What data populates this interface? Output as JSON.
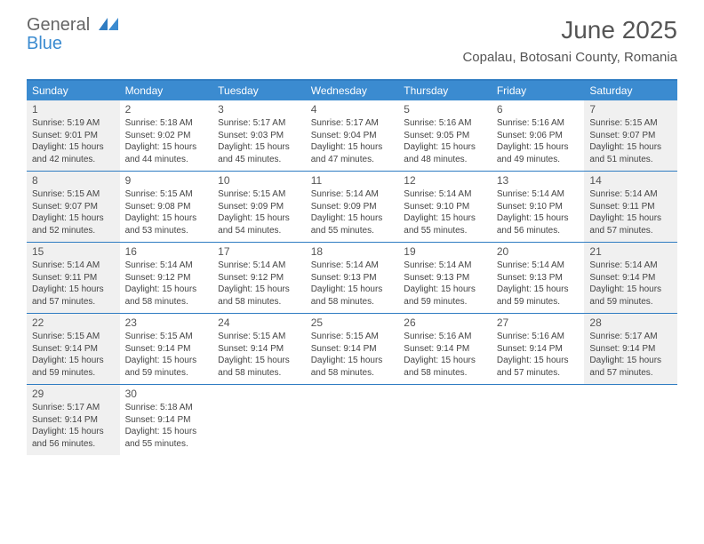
{
  "logo": {
    "line1": "General",
    "line2": "Blue"
  },
  "title": "June 2025",
  "location": "Copalau, Botosani County, Romania",
  "colors": {
    "accent": "#3b8bd0",
    "rule": "#2f7cc2",
    "shade": "#f0f0f0"
  },
  "dow": [
    "Sunday",
    "Monday",
    "Tuesday",
    "Wednesday",
    "Thursday",
    "Friday",
    "Saturday"
  ],
  "days": [
    {
      "n": "1",
      "shaded": true,
      "sunrise": "Sunrise: 5:19 AM",
      "sunset": "Sunset: 9:01 PM",
      "day1": "Daylight: 15 hours",
      "day2": "and 42 minutes."
    },
    {
      "n": "2",
      "shaded": false,
      "sunrise": "Sunrise: 5:18 AM",
      "sunset": "Sunset: 9:02 PM",
      "day1": "Daylight: 15 hours",
      "day2": "and 44 minutes."
    },
    {
      "n": "3",
      "shaded": false,
      "sunrise": "Sunrise: 5:17 AM",
      "sunset": "Sunset: 9:03 PM",
      "day1": "Daylight: 15 hours",
      "day2": "and 45 minutes."
    },
    {
      "n": "4",
      "shaded": false,
      "sunrise": "Sunrise: 5:17 AM",
      "sunset": "Sunset: 9:04 PM",
      "day1": "Daylight: 15 hours",
      "day2": "and 47 minutes."
    },
    {
      "n": "5",
      "shaded": false,
      "sunrise": "Sunrise: 5:16 AM",
      "sunset": "Sunset: 9:05 PM",
      "day1": "Daylight: 15 hours",
      "day2": "and 48 minutes."
    },
    {
      "n": "6",
      "shaded": false,
      "sunrise": "Sunrise: 5:16 AM",
      "sunset": "Sunset: 9:06 PM",
      "day1": "Daylight: 15 hours",
      "day2": "and 49 minutes."
    },
    {
      "n": "7",
      "shaded": true,
      "sunrise": "Sunrise: 5:15 AM",
      "sunset": "Sunset: 9:07 PM",
      "day1": "Daylight: 15 hours",
      "day2": "and 51 minutes."
    },
    {
      "n": "8",
      "shaded": true,
      "sunrise": "Sunrise: 5:15 AM",
      "sunset": "Sunset: 9:07 PM",
      "day1": "Daylight: 15 hours",
      "day2": "and 52 minutes."
    },
    {
      "n": "9",
      "shaded": false,
      "sunrise": "Sunrise: 5:15 AM",
      "sunset": "Sunset: 9:08 PM",
      "day1": "Daylight: 15 hours",
      "day2": "and 53 minutes."
    },
    {
      "n": "10",
      "shaded": false,
      "sunrise": "Sunrise: 5:15 AM",
      "sunset": "Sunset: 9:09 PM",
      "day1": "Daylight: 15 hours",
      "day2": "and 54 minutes."
    },
    {
      "n": "11",
      "shaded": false,
      "sunrise": "Sunrise: 5:14 AM",
      "sunset": "Sunset: 9:09 PM",
      "day1": "Daylight: 15 hours",
      "day2": "and 55 minutes."
    },
    {
      "n": "12",
      "shaded": false,
      "sunrise": "Sunrise: 5:14 AM",
      "sunset": "Sunset: 9:10 PM",
      "day1": "Daylight: 15 hours",
      "day2": "and 55 minutes."
    },
    {
      "n": "13",
      "shaded": false,
      "sunrise": "Sunrise: 5:14 AM",
      "sunset": "Sunset: 9:10 PM",
      "day1": "Daylight: 15 hours",
      "day2": "and 56 minutes."
    },
    {
      "n": "14",
      "shaded": true,
      "sunrise": "Sunrise: 5:14 AM",
      "sunset": "Sunset: 9:11 PM",
      "day1": "Daylight: 15 hours",
      "day2": "and 57 minutes."
    },
    {
      "n": "15",
      "shaded": true,
      "sunrise": "Sunrise: 5:14 AM",
      "sunset": "Sunset: 9:11 PM",
      "day1": "Daylight: 15 hours",
      "day2": "and 57 minutes."
    },
    {
      "n": "16",
      "shaded": false,
      "sunrise": "Sunrise: 5:14 AM",
      "sunset": "Sunset: 9:12 PM",
      "day1": "Daylight: 15 hours",
      "day2": "and 58 minutes."
    },
    {
      "n": "17",
      "shaded": false,
      "sunrise": "Sunrise: 5:14 AM",
      "sunset": "Sunset: 9:12 PM",
      "day1": "Daylight: 15 hours",
      "day2": "and 58 minutes."
    },
    {
      "n": "18",
      "shaded": false,
      "sunrise": "Sunrise: 5:14 AM",
      "sunset": "Sunset: 9:13 PM",
      "day1": "Daylight: 15 hours",
      "day2": "and 58 minutes."
    },
    {
      "n": "19",
      "shaded": false,
      "sunrise": "Sunrise: 5:14 AM",
      "sunset": "Sunset: 9:13 PM",
      "day1": "Daylight: 15 hours",
      "day2": "and 59 minutes."
    },
    {
      "n": "20",
      "shaded": false,
      "sunrise": "Sunrise: 5:14 AM",
      "sunset": "Sunset: 9:13 PM",
      "day1": "Daylight: 15 hours",
      "day2": "and 59 minutes."
    },
    {
      "n": "21",
      "shaded": true,
      "sunrise": "Sunrise: 5:14 AM",
      "sunset": "Sunset: 9:14 PM",
      "day1": "Daylight: 15 hours",
      "day2": "and 59 minutes."
    },
    {
      "n": "22",
      "shaded": true,
      "sunrise": "Sunrise: 5:15 AM",
      "sunset": "Sunset: 9:14 PM",
      "day1": "Daylight: 15 hours",
      "day2": "and 59 minutes."
    },
    {
      "n": "23",
      "shaded": false,
      "sunrise": "Sunrise: 5:15 AM",
      "sunset": "Sunset: 9:14 PM",
      "day1": "Daylight: 15 hours",
      "day2": "and 59 minutes."
    },
    {
      "n": "24",
      "shaded": false,
      "sunrise": "Sunrise: 5:15 AM",
      "sunset": "Sunset: 9:14 PM",
      "day1": "Daylight: 15 hours",
      "day2": "and 58 minutes."
    },
    {
      "n": "25",
      "shaded": false,
      "sunrise": "Sunrise: 5:15 AM",
      "sunset": "Sunset: 9:14 PM",
      "day1": "Daylight: 15 hours",
      "day2": "and 58 minutes."
    },
    {
      "n": "26",
      "shaded": false,
      "sunrise": "Sunrise: 5:16 AM",
      "sunset": "Sunset: 9:14 PM",
      "day1": "Daylight: 15 hours",
      "day2": "and 58 minutes."
    },
    {
      "n": "27",
      "shaded": false,
      "sunrise": "Sunrise: 5:16 AM",
      "sunset": "Sunset: 9:14 PM",
      "day1": "Daylight: 15 hours",
      "day2": "and 57 minutes."
    },
    {
      "n": "28",
      "shaded": true,
      "sunrise": "Sunrise: 5:17 AM",
      "sunset": "Sunset: 9:14 PM",
      "day1": "Daylight: 15 hours",
      "day2": "and 57 minutes."
    },
    {
      "n": "29",
      "shaded": true,
      "sunrise": "Sunrise: 5:17 AM",
      "sunset": "Sunset: 9:14 PM",
      "day1": "Daylight: 15 hours",
      "day2": "and 56 minutes."
    },
    {
      "n": "30",
      "shaded": false,
      "sunrise": "Sunrise: 5:18 AM",
      "sunset": "Sunset: 9:14 PM",
      "day1": "Daylight: 15 hours",
      "day2": "and 55 minutes."
    }
  ]
}
